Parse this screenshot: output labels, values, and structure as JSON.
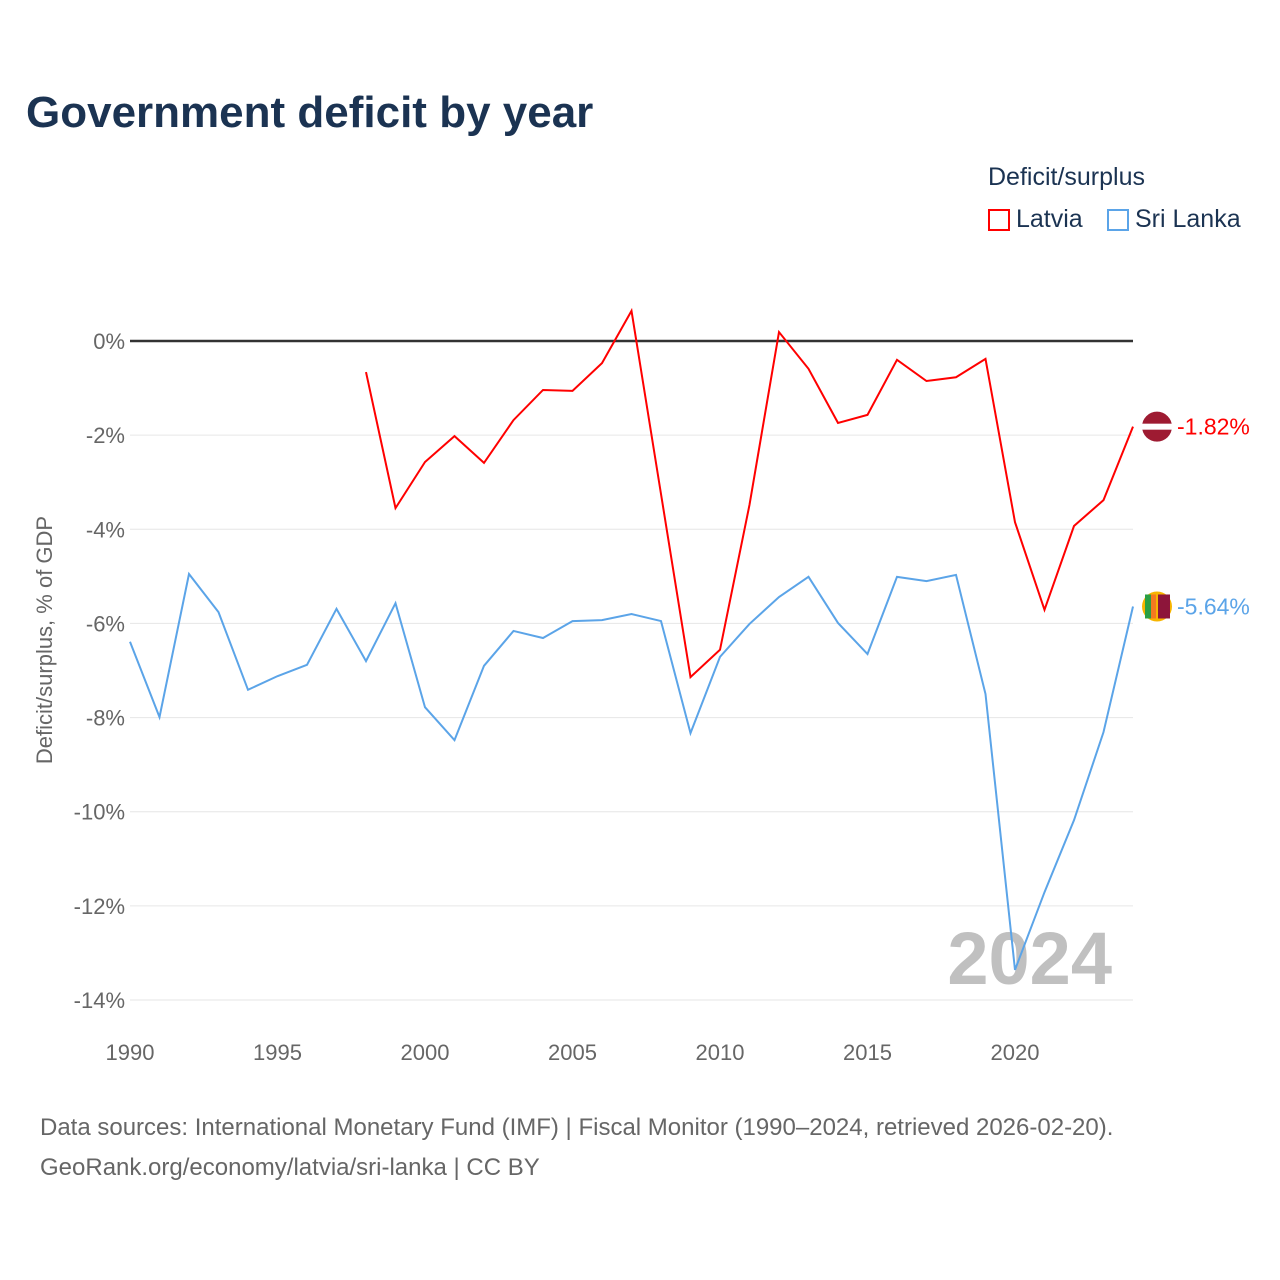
{
  "title": "Government deficit by year",
  "legend": {
    "title": "Deficit/surplus",
    "items": [
      {
        "name": "Latvia",
        "color": "#ff0000"
      },
      {
        "name": "Sri Lanka",
        "color": "#5ba4e8"
      }
    ]
  },
  "footer": {
    "line1": "Data sources: International Monetary Fund (IMF) | Fiscal Monitor (1990–2024, retrieved 2026-02-20).",
    "line2": "GeoRank.org/economy/latvia/sri-lanka | CC BY"
  },
  "chart_data": {
    "type": "line",
    "title": "Government deficit by year",
    "ylabel": "Deficit/surplus, % of GDP",
    "xlabel": "",
    "xlim": [
      1990,
      2024
    ],
    "ylim": [
      -14,
      0.8
    ],
    "xticks": [
      1990,
      1995,
      2000,
      2005,
      2010,
      2015,
      2020
    ],
    "yticks": [
      0,
      -2,
      -4,
      -6,
      -8,
      -10,
      -12,
      -14
    ],
    "ytick_labels": [
      "0%",
      "-2%",
      "-4%",
      "-6%",
      "-8%",
      "-10%",
      "-12%",
      "-14%"
    ],
    "watermark_year": "2024",
    "series": [
      {
        "name": "Latvia",
        "color": "#ff0000",
        "end_label": "-1.82%",
        "x": [
          1998,
          1999,
          2000,
          2001,
          2002,
          2003,
          2004,
          2005,
          2006,
          2007,
          2008,
          2009,
          2010,
          2011,
          2012,
          2013,
          2014,
          2015,
          2016,
          2017,
          2018,
          2019,
          2020,
          2021,
          2022,
          2023,
          2024
        ],
        "values": [
          -0.66,
          -3.55,
          -2.57,
          -2.02,
          -2.59,
          -1.68,
          -1.04,
          -1.06,
          -0.47,
          0.64,
          -3.25,
          -7.14,
          -6.56,
          -3.48,
          0.19,
          -0.59,
          -1.74,
          -1.57,
          -0.4,
          -0.85,
          -0.77,
          -0.38,
          -3.85,
          -5.71,
          -3.93,
          -3.38,
          -1.82
        ]
      },
      {
        "name": "Sri Lanka",
        "color": "#5ba4e8",
        "end_label": "-5.64%",
        "x": [
          1990,
          1991,
          1992,
          1993,
          1994,
          1995,
          1996,
          1997,
          1998,
          1999,
          2000,
          2001,
          2002,
          2003,
          2004,
          2005,
          2006,
          2007,
          2008,
          2009,
          2010,
          2011,
          2012,
          2013,
          2014,
          2015,
          2016,
          2017,
          2018,
          2019,
          2020,
          2021,
          2022,
          2023,
          2024
        ],
        "values": [
          -6.39,
          -7.99,
          -4.95,
          -5.76,
          -7.41,
          -7.12,
          -6.88,
          -5.69,
          -6.8,
          -5.57,
          -7.78,
          -8.48,
          -6.9,
          -6.16,
          -6.31,
          -5.95,
          -5.93,
          -5.8,
          -5.95,
          -8.33,
          -6.71,
          -6.01,
          -5.44,
          -5.01,
          -5.99,
          -6.65,
          -5.01,
          -5.1,
          -4.97,
          -7.5,
          -13.36,
          -11.71,
          -10.18,
          -8.31,
          -5.64
        ]
      }
    ]
  }
}
